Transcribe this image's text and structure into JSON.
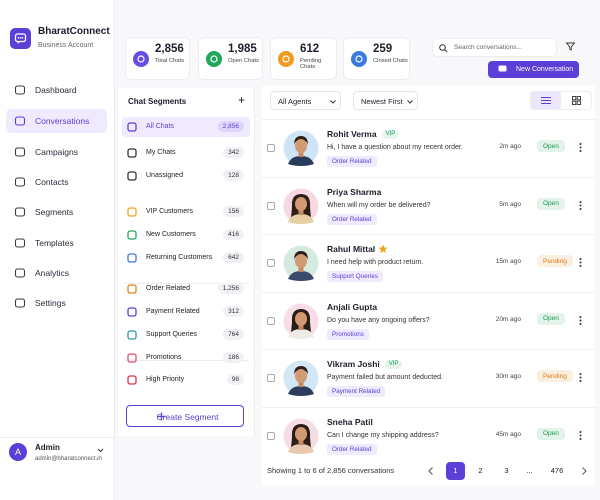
{
  "brand": {
    "name": "BharatConnect",
    "subtitle": "Business Account"
  },
  "nav": [
    "Dashboard",
    "Conversations",
    "Campaigns",
    "Contacts",
    "Segments",
    "Templates",
    "Analytics",
    "Settings"
  ],
  "user": {
    "initial": "A",
    "name": "Admin",
    "email": "admin@bharatconnect.in"
  },
  "stats": [
    {
      "value": "2,856",
      "label": "Total Chats"
    },
    {
      "value": "1,985",
      "label": "Open Chats"
    },
    {
      "value": "612",
      "label": "Pending Chats"
    },
    {
      "value": "259",
      "label": "Closed Chats"
    }
  ],
  "search": {
    "placeholder": "Search conversations..."
  },
  "new_button": "New Conversation",
  "segments": {
    "title": "Chat Segments",
    "add": "+",
    "groups": [
      [
        {
          "name": "All Chats",
          "count": "2,856"
        },
        {
          "name": "My Chats",
          "count": "342"
        },
        {
          "name": "Unassigned",
          "count": "128"
        }
      ],
      [
        {
          "name": "VIP Customers",
          "count": "156"
        },
        {
          "name": "New Customers",
          "count": "416"
        },
        {
          "name": "Returning Customers",
          "count": "642"
        }
      ],
      [
        {
          "name": "Order Related",
          "count": "1,256"
        },
        {
          "name": "Payment Related",
          "count": "312"
        },
        {
          "name": "Support Queries",
          "count": "764"
        },
        {
          "name": "Promotions",
          "count": "186"
        },
        {
          "name": "High Priority",
          "count": "98"
        }
      ]
    ],
    "create": "Create Segment"
  },
  "filters": [
    "All Agents",
    "Newest First"
  ],
  "conversations": [
    {
      "name": "Rohit Verma",
      "badge": "VIP",
      "message": "Hi, I have a question about my recent order.",
      "tag": "Order Related",
      "time": "2m ago",
      "status": "Open",
      "status_color": "#1a9a55"
    },
    {
      "name": "Priya Sharma",
      "message": "When will my order be delivered?",
      "tag": "Order Related",
      "time": "5m ago",
      "status": "Open",
      "status_color": "#1a9a55"
    },
    {
      "name": "Rahul Mittal",
      "message": "I need help with product return.",
      "tag": "Support Queries",
      "time": "15m ago",
      "status": "Pending",
      "status_color": "#e07b12"
    },
    {
      "name": "Anjali Gupta",
      "message": "Do you have any ongoing offers?",
      "tag": "Promotions",
      "time": "20m ago",
      "status": "Open",
      "status_color": "#1a9a55"
    },
    {
      "name": "Vikram Joshi",
      "badge": "VIP",
      "message": "Payment failed but amount deducted.",
      "tag": "Payment Related",
      "time": "30m ago",
      "status": "Pending",
      "status_color": "#e07b12"
    },
    {
      "name": "Sneha Patil",
      "message": "Can I change my shipping address?",
      "tag": "Order Related",
      "time": "45m ago",
      "status": "Open",
      "status_color": "#1a9a55"
    }
  ],
  "footer": {
    "summary": "Showing 1 to 6 of 2,856 conversations",
    "pages": [
      "1",
      "2",
      "3",
      "...",
      "476"
    ]
  }
}
